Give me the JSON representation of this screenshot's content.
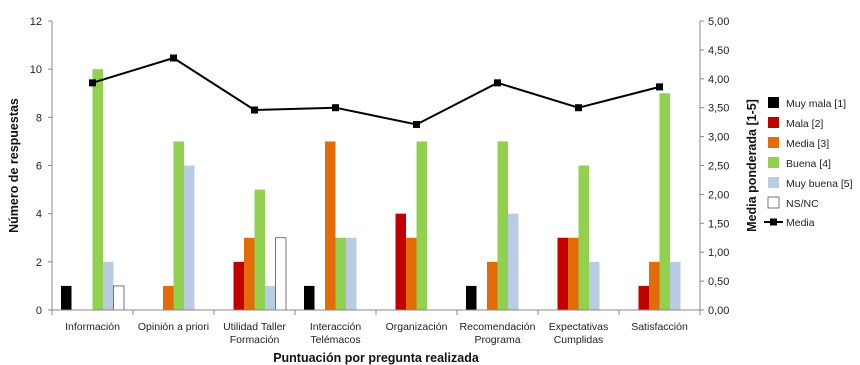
{
  "chart_data": {
    "type": "bar",
    "xlabel": "Puntuación por pregunta realizada",
    "ylabel": "Número de respuestas",
    "y2label": "Media ponderada [1-5]",
    "ylim": [
      0,
      12
    ],
    "yticks": [
      "0",
      "2",
      "4",
      "6",
      "8",
      "10",
      "12"
    ],
    "y2lim": [
      0,
      5
    ],
    "y2ticks": [
      "0,00",
      "0,50",
      "1,00",
      "1,50",
      "2,00",
      "2,50",
      "3,00",
      "3,50",
      "4,00",
      "4,50",
      "5,00"
    ],
    "grid": false,
    "legend_position": "right",
    "categories": [
      [
        "Información"
      ],
      [
        "Opinión a priori"
      ],
      [
        "Utilidad Taller",
        "Formación"
      ],
      [
        "Interacción",
        "Telémacos"
      ],
      [
        "Organización"
      ],
      [
        "Recomendación",
        "Programa"
      ],
      [
        "Expectativas",
        "Cumplidas"
      ],
      [
        "Satisfacción"
      ]
    ],
    "series": [
      {
        "name": "Muy mala [1]",
        "color": "#000000",
        "values": [
          1,
          0,
          0,
          1,
          0,
          1,
          0,
          0
        ]
      },
      {
        "name": "Mala [2]",
        "color": "#c00000",
        "values": [
          0,
          0,
          2,
          0,
          4,
          0,
          3,
          1
        ]
      },
      {
        "name": "Media [3]",
        "color": "#e36c09",
        "values": [
          0,
          1,
          3,
          7,
          3,
          2,
          3,
          2
        ]
      },
      {
        "name": "Buena [4]",
        "color": "#92d050",
        "values": [
          10,
          7,
          5,
          3,
          7,
          7,
          6,
          9
        ]
      },
      {
        "name": "Muy buena [5]",
        "color": "#b8cce4",
        "values": [
          2,
          6,
          1,
          3,
          0,
          4,
          2,
          2
        ]
      },
      {
        "name": "NS/NC",
        "color": "#ffffff",
        "values": [
          1,
          0,
          3,
          0,
          0,
          0,
          0,
          0
        ]
      }
    ],
    "line_series": {
      "name": "Media",
      "color": "#000000",
      "axis": "secondary",
      "values": [
        3.93,
        4.36,
        3.46,
        3.5,
        3.21,
        3.93,
        3.5,
        3.86
      ]
    }
  }
}
